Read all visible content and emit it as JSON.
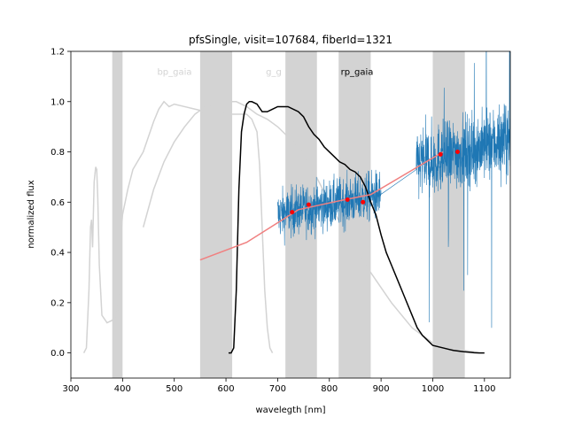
{
  "chart_data": {
    "type": "line",
    "title": "pfsSingle, visit=107684, fiberId=1321",
    "xlabel": "wavelegth [nm]",
    "ylabel": "normalized flux",
    "xlim": [
      300,
      1150
    ],
    "ylim": [
      -0.1,
      1.2
    ],
    "xticks": [
      300,
      400,
      500,
      600,
      700,
      800,
      900,
      1000,
      1100
    ],
    "xtick_labels": [
      "300",
      "400",
      "500",
      "600",
      "700",
      "800",
      "900",
      "1000",
      "1100"
    ],
    "yticks": [
      0.0,
      0.2,
      0.4,
      0.6,
      0.8,
      1.0,
      1.2
    ],
    "ytick_labels": [
      "0.0",
      "0.2",
      "0.4",
      "0.6",
      "0.8",
      "1.0",
      "1.2"
    ],
    "grid": false,
    "colors": {
      "spectrum": "#1f77b4",
      "bp_rp_filter": "#d3d3d3",
      "g_filter": "#000000",
      "shaded_band": "#d3d3d3",
      "fit_line": "#f08080",
      "points": "#ff0000"
    },
    "band_labels": [
      {
        "text": "bp_gaia",
        "x": 480,
        "y": 1.12,
        "color": "#d3d3d3"
      },
      {
        "text": "g_g",
        "x": 315,
        "y": 1.12,
        "color": "#d3d3d3"
      },
      {
        "text": "rp_gaia",
        "x": 850,
        "y": 1.12,
        "color": "#000000"
      }
    ],
    "shaded_regions": [
      [
        380,
        400
      ],
      [
        550,
        612
      ],
      [
        715,
        776
      ],
      [
        818,
        880
      ],
      [
        1000,
        1062
      ]
    ],
    "bp_filter_curve": {
      "x": [
        325,
        330,
        335,
        338,
        340,
        342,
        345,
        348,
        350,
        352,
        355,
        360,
        370,
        380,
        385,
        390,
        393,
        396,
        400,
        410,
        420,
        440,
        450,
        460,
        470,
        480,
        490,
        500,
        520,
        540,
        560,
        580,
        600,
        620,
        640,
        650,
        660,
        665,
        670,
        675,
        680,
        685,
        690
      ],
      "y": [
        0.0,
        0.02,
        0.25,
        0.5,
        0.53,
        0.42,
        0.68,
        0.74,
        0.73,
        0.62,
        0.35,
        0.15,
        0.12,
        0.13,
        0.14,
        0.16,
        0.25,
        0.45,
        0.55,
        0.65,
        0.73,
        0.8,
        0.86,
        0.92,
        0.97,
        1.0,
        0.98,
        0.99,
        0.98,
        0.97,
        0.96,
        0.96,
        0.95,
        0.95,
        0.95,
        0.93,
        0.88,
        0.75,
        0.5,
        0.25,
        0.1,
        0.02,
        0.0
      ]
    },
    "rp_filter_curve": {
      "x": [
        440,
        460,
        480,
        500,
        520,
        540,
        560,
        580,
        600,
        620,
        640,
        660,
        680,
        700,
        720,
        740,
        760,
        780,
        800,
        820,
        840,
        860,
        880,
        900,
        920,
        940,
        960,
        980,
        1000,
        1020,
        1040,
        1060,
        1080,
        1090
      ],
      "y": [
        0.5,
        0.65,
        0.76,
        0.84,
        0.9,
        0.95,
        0.98,
        0.99,
        1.0,
        1.0,
        0.98,
        0.95,
        0.93,
        0.9,
        0.86,
        0.82,
        0.76,
        0.68,
        0.6,
        0.52,
        0.45,
        0.38,
        0.32,
        0.26,
        0.2,
        0.15,
        0.1,
        0.07,
        0.04,
        0.025,
        0.015,
        0.01,
        0.005,
        0.0
      ]
    },
    "g_filter_curve": {
      "x": [
        605,
        610,
        615,
        620,
        625,
        630,
        635,
        640,
        645,
        650,
        660,
        670,
        680,
        690,
        700,
        720,
        740,
        750,
        760,
        770,
        780,
        790,
        800,
        810,
        820,
        830,
        840,
        850,
        860,
        870,
        880,
        890,
        900,
        910,
        920,
        930,
        940,
        950,
        960,
        970,
        980,
        990,
        1000,
        1020,
        1040,
        1060,
        1070,
        1080,
        1090,
        1100
      ],
      "y": [
        0.0,
        0.0,
        0.02,
        0.25,
        0.65,
        0.88,
        0.95,
        0.99,
        1.0,
        1.0,
        0.99,
        0.96,
        0.96,
        0.97,
        0.98,
        0.98,
        0.96,
        0.94,
        0.9,
        0.87,
        0.85,
        0.82,
        0.8,
        0.78,
        0.76,
        0.75,
        0.73,
        0.72,
        0.7,
        0.66,
        0.6,
        0.55,
        0.47,
        0.4,
        0.35,
        0.3,
        0.25,
        0.2,
        0.15,
        0.1,
        0.07,
        0.05,
        0.03,
        0.02,
        0.01,
        0.005,
        0.003,
        0.001,
        0.0,
        0.0
      ]
    },
    "spectrum_segments": [
      {
        "x_start": 700,
        "x_end": 900,
        "mean_start": 0.55,
        "mean_end": 0.63,
        "noise": 0.07
      },
      {
        "x_start": 968,
        "x_end": 1150,
        "mean_start": 0.75,
        "mean_end": 0.85,
        "noise": 0.1
      }
    ],
    "fit_line": {
      "x": [
        550,
        640,
        740,
        830,
        880,
        1020
      ],
      "y": [
        0.37,
        0.44,
        0.57,
        0.61,
        0.63,
        0.8
      ]
    },
    "points": {
      "x": [
        728,
        760,
        835,
        865,
        1015,
        1048
      ],
      "y": [
        0.56,
        0.59,
        0.61,
        0.6,
        0.79,
        0.8
      ]
    }
  }
}
